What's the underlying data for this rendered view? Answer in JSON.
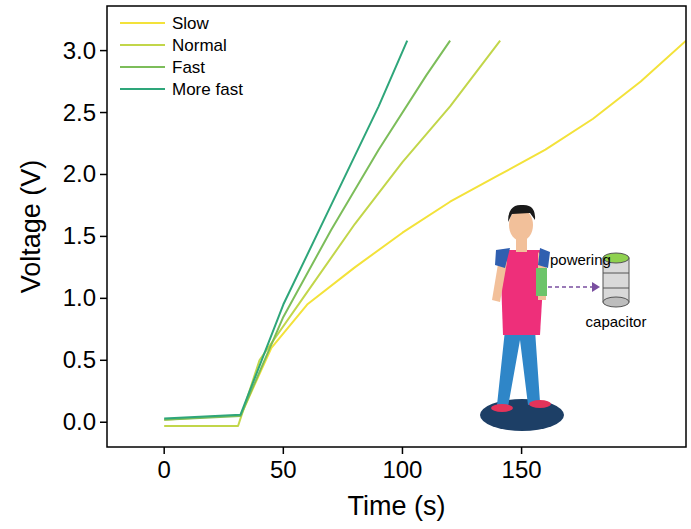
{
  "chart_data": {
    "type": "line",
    "x_label": "Time (s)",
    "y_label": "Voltage (V)",
    "xlim": [
      -24,
      219
    ],
    "ylim": [
      -0.2,
      3.36
    ],
    "xticks": [
      0,
      50,
      100,
      150
    ],
    "yticks": [
      {
        "value": 0,
        "label": "0.0"
      },
      0.5,
      {
        "value": 1,
        "label": "1.0"
      },
      1.5,
      {
        "value": 2,
        "label": "2.0"
      },
      2.5,
      {
        "value": 3,
        "label": "3.0"
      }
    ],
    "grid": false,
    "legend": "upper left",
    "annotations": [
      "powering",
      "capacitor"
    ],
    "series": [
      {
        "name": "Slow",
        "color": "#f3e23a",
        "x": [
          0,
          25,
          32,
          45,
          60,
          80,
          100,
          120,
          140,
          160,
          180,
          200,
          219
        ],
        "values": [
          0.02,
          0.05,
          0.05,
          0.6,
          0.95,
          1.25,
          1.53,
          1.78,
          1.99,
          2.2,
          2.45,
          2.75,
          3.08
        ]
      },
      {
        "name": "Normal",
        "color": "#c2d64a",
        "x": [
          0,
          31,
          40,
          60,
          80,
          100,
          120,
          141
        ],
        "values": [
          -0.03,
          -0.03,
          0.5,
          1.05,
          1.6,
          2.1,
          2.55,
          3.08
        ]
      },
      {
        "name": "Fast",
        "color": "#7cbd5a",
        "x": [
          0,
          32,
          50,
          70,
          90,
          110,
          120
        ],
        "values": [
          0.02,
          0.05,
          0.85,
          1.55,
          2.2,
          2.8,
          3.08
        ]
      },
      {
        "name": "More fast",
        "color": "#2ea67a",
        "x": [
          0,
          32,
          50,
          70,
          90,
          102
        ],
        "values": [
          0.03,
          0.06,
          0.95,
          1.75,
          2.55,
          3.08
        ]
      }
    ]
  }
}
